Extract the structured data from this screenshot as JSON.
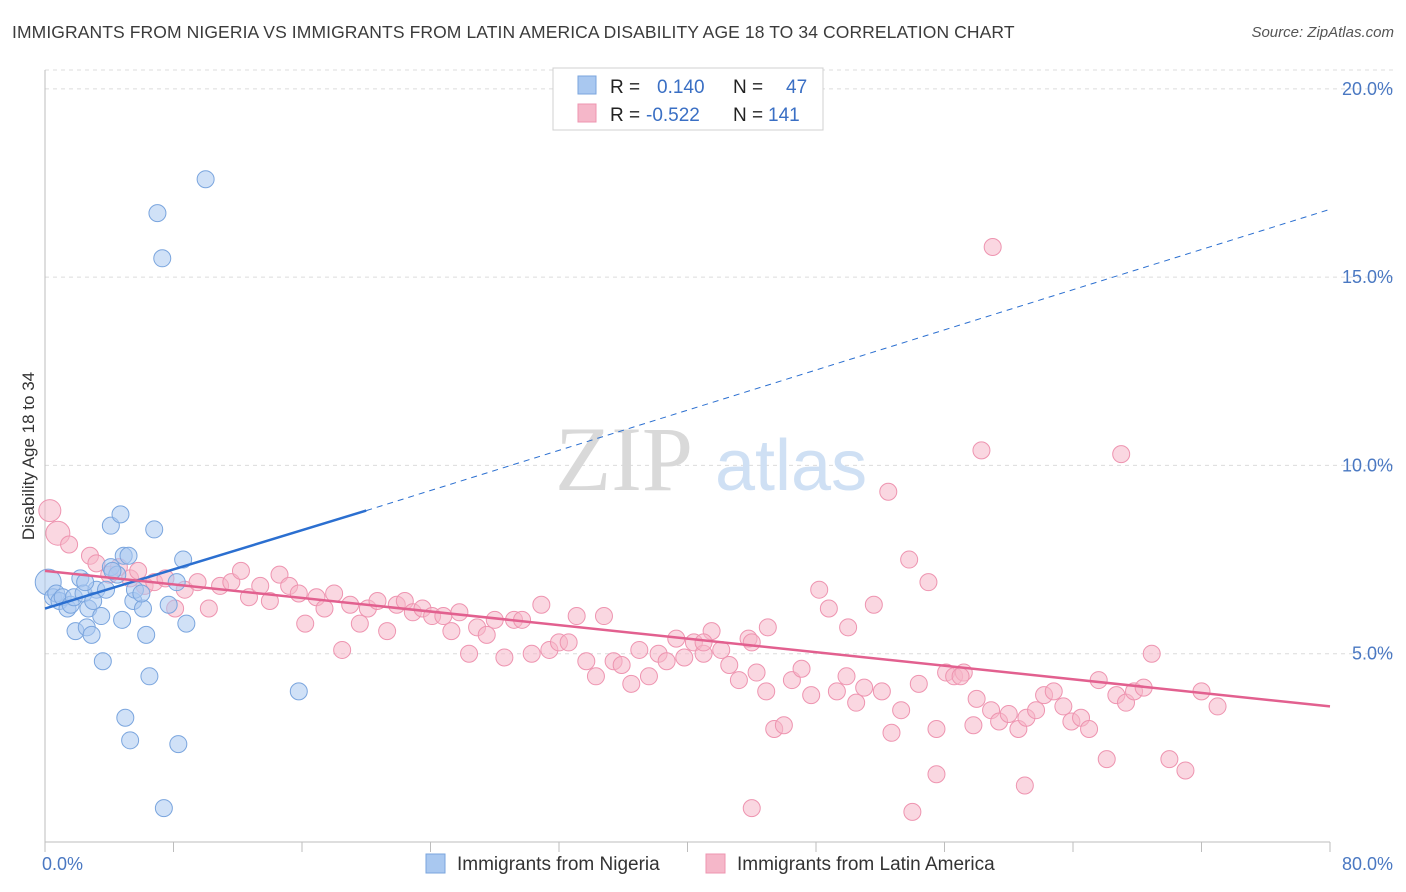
{
  "title": "IMMIGRANTS FROM NIGERIA VS IMMIGRANTS FROM LATIN AMERICA DISABILITY AGE 18 TO 34 CORRELATION CHART",
  "source": "Source: ZipAtlas.com",
  "watermark": {
    "zip": "ZIP",
    "atlas": "atlas"
  },
  "colors": {
    "nigeria_fill": "#a9c8f0",
    "nigeria_stroke": "#7aa5de",
    "nigeria_line": "#2b6fd0",
    "latin_fill": "#f5b7c9",
    "latin_stroke": "#ee94b0",
    "latin_line": "#e2608f",
    "grid": "#dcdcdc",
    "axis_text": "#4a78c2"
  },
  "legend": {
    "rows": [
      {
        "r_label": "R =",
        "r_value": "0.140",
        "n_label": "N =",
        "n_value": "47"
      },
      {
        "r_label": "R =",
        "r_value": "-0.522",
        "n_label": "N =",
        "n_value": "141"
      }
    ]
  },
  "chart_data": {
    "type": "scatter",
    "xlabel": "",
    "ylabel": "Disability Age 18 to 34",
    "xlim": [
      0,
      80
    ],
    "ylim": [
      0,
      20.5
    ],
    "x_tick_labels": [
      "0.0%",
      "80.0%"
    ],
    "y_ticks": [
      5,
      10,
      15,
      20
    ],
    "y_tick_labels": [
      "5.0%",
      "10.0%",
      "15.0%",
      "20.0%"
    ],
    "grid": "horizontal dashed",
    "legend_position": "top-center",
    "series": [
      {
        "name": "Immigrants from Nigeria",
        "R": 0.14,
        "N": 47,
        "trend": {
          "x0": 0,
          "y0": 6.2,
          "x1": 20,
          "y1": 8.8,
          "dashed_to_x": 80,
          "dashed_to_y": 16.8
        },
        "points": [
          [
            0.2,
            6.9
          ],
          [
            0.5,
            6.5
          ],
          [
            0.7,
            6.6
          ],
          [
            0.9,
            6.4
          ],
          [
            1.1,
            6.5
          ],
          [
            1.4,
            6.2
          ],
          [
            1.6,
            6.3
          ],
          [
            1.8,
            6.5
          ],
          [
            1.9,
            5.6
          ],
          [
            2.2,
            7.0
          ],
          [
            2.4,
            6.6
          ],
          [
            2.6,
            5.7
          ],
          [
            2.7,
            6.2
          ],
          [
            2.9,
            5.5
          ],
          [
            3.2,
            6.7
          ],
          [
            3.5,
            6.0
          ],
          [
            3.6,
            4.8
          ],
          [
            3.8,
            6.7
          ],
          [
            4.1,
            7.3
          ],
          [
            4.1,
            8.4
          ],
          [
            4.5,
            7.1
          ],
          [
            4.7,
            8.7
          ],
          [
            4.8,
            5.9
          ],
          [
            4.9,
            7.6
          ],
          [
            5.2,
            7.6
          ],
          [
            5.5,
            6.4
          ],
          [
            5.6,
            6.7
          ],
          [
            6.1,
            6.2
          ],
          [
            6.3,
            5.5
          ],
          [
            6.5,
            4.4
          ],
          [
            6.8,
            8.3
          ],
          [
            7.0,
            16.7
          ],
          [
            7.3,
            15.5
          ],
          [
            7.7,
            6.3
          ],
          [
            8.2,
            6.9
          ],
          [
            8.6,
            7.5
          ],
          [
            8.8,
            5.8
          ],
          [
            10.0,
            17.6
          ],
          [
            5.0,
            3.3
          ],
          [
            5.3,
            2.7
          ],
          [
            8.3,
            2.6
          ],
          [
            7.4,
            0.9
          ],
          [
            15.8,
            4.0
          ],
          [
            4.2,
            7.2
          ],
          [
            6.0,
            6.6
          ],
          [
            2.5,
            6.9
          ],
          [
            3.0,
            6.4
          ]
        ]
      },
      {
        "name": "Immigrants from Latin America",
        "R": -0.522,
        "N": 141,
        "trend": {
          "x0": 0,
          "y0": 7.2,
          "x1": 80,
          "y1": 3.6
        },
        "points": [
          [
            0.3,
            8.8
          ],
          [
            0.8,
            8.2
          ],
          [
            1.5,
            7.9
          ],
          [
            2.8,
            7.6
          ],
          [
            3.2,
            7.4
          ],
          [
            4.0,
            7.1
          ],
          [
            4.6,
            7.3
          ],
          [
            5.3,
            7.0
          ],
          [
            5.8,
            7.2
          ],
          [
            6.2,
            6.8
          ],
          [
            6.8,
            6.9
          ],
          [
            7.5,
            7.0
          ],
          [
            8.1,
            6.2
          ],
          [
            8.7,
            6.7
          ],
          [
            9.5,
            6.9
          ],
          [
            10.2,
            6.2
          ],
          [
            10.9,
            6.8
          ],
          [
            11.6,
            6.9
          ],
          [
            12.2,
            7.2
          ],
          [
            12.7,
            6.5
          ],
          [
            13.4,
            6.8
          ],
          [
            14.0,
            6.4
          ],
          [
            14.6,
            7.1
          ],
          [
            15.2,
            6.8
          ],
          [
            15.8,
            6.6
          ],
          [
            16.2,
            5.8
          ],
          [
            16.9,
            6.5
          ],
          [
            17.4,
            6.2
          ],
          [
            18.0,
            6.6
          ],
          [
            18.5,
            5.1
          ],
          [
            19.0,
            6.3
          ],
          [
            19.6,
            5.8
          ],
          [
            20.1,
            6.2
          ],
          [
            20.7,
            6.4
          ],
          [
            21.3,
            5.6
          ],
          [
            21.9,
            6.3
          ],
          [
            22.4,
            6.4
          ],
          [
            22.9,
            6.1
          ],
          [
            23.5,
            6.2
          ],
          [
            24.1,
            6.0
          ],
          [
            24.8,
            6.0
          ],
          [
            25.3,
            5.6
          ],
          [
            25.8,
            6.1
          ],
          [
            26.4,
            5.0
          ],
          [
            26.9,
            5.7
          ],
          [
            27.5,
            5.5
          ],
          [
            28.0,
            5.9
          ],
          [
            28.6,
            4.9
          ],
          [
            29.2,
            5.9
          ],
          [
            29.7,
            5.9
          ],
          [
            30.3,
            5.0
          ],
          [
            30.9,
            6.3
          ],
          [
            31.4,
            5.1
          ],
          [
            32.0,
            5.3
          ],
          [
            32.6,
            5.3
          ],
          [
            33.1,
            6.0
          ],
          [
            33.7,
            4.8
          ],
          [
            34.3,
            4.4
          ],
          [
            34.8,
            6.0
          ],
          [
            35.4,
            4.8
          ],
          [
            35.9,
            4.7
          ],
          [
            36.5,
            4.2
          ],
          [
            37.0,
            5.1
          ],
          [
            37.6,
            4.4
          ],
          [
            38.2,
            5.0
          ],
          [
            38.7,
            4.8
          ],
          [
            39.3,
            5.4
          ],
          [
            39.8,
            4.9
          ],
          [
            40.4,
            5.3
          ],
          [
            41.0,
            5.0
          ],
          [
            41.5,
            5.6
          ],
          [
            42.1,
            5.1
          ],
          [
            42.6,
            4.7
          ],
          [
            43.2,
            4.3
          ],
          [
            43.8,
            5.4
          ],
          [
            44.3,
            4.5
          ],
          [
            44.9,
            4.0
          ],
          [
            45.4,
            3.0
          ],
          [
            46.0,
            3.1
          ],
          [
            46.5,
            4.3
          ],
          [
            47.1,
            4.6
          ],
          [
            47.7,
            3.9
          ],
          [
            48.2,
            6.7
          ],
          [
            48.8,
            6.2
          ],
          [
            49.3,
            4.0
          ],
          [
            49.9,
            4.4
          ],
          [
            50.5,
            3.7
          ],
          [
            51.0,
            4.1
          ],
          [
            51.6,
            6.3
          ],
          [
            52.1,
            4.0
          ],
          [
            52.7,
            2.9
          ],
          [
            53.3,
            3.5
          ],
          [
            53.8,
            7.5
          ],
          [
            54.4,
            4.2
          ],
          [
            55.0,
            6.9
          ],
          [
            55.5,
            3.0
          ],
          [
            56.1,
            4.5
          ],
          [
            56.6,
            4.4
          ],
          [
            57.2,
            4.5
          ],
          [
            57.8,
            3.1
          ],
          [
            58.3,
            10.4
          ],
          [
            58.9,
            3.5
          ],
          [
            59.4,
            3.2
          ],
          [
            60.0,
            3.4
          ],
          [
            60.6,
            3.0
          ],
          [
            61.1,
            3.3
          ],
          [
            61.7,
            3.5
          ],
          [
            62.2,
            3.9
          ],
          [
            62.8,
            4.0
          ],
          [
            63.4,
            3.6
          ],
          [
            63.9,
            3.2
          ],
          [
            64.5,
            3.3
          ],
          [
            65.0,
            3.0
          ],
          [
            65.6,
            4.3
          ],
          [
            66.1,
            2.2
          ],
          [
            66.7,
            3.9
          ],
          [
            67.3,
            3.7
          ],
          [
            67.8,
            4.0
          ],
          [
            68.4,
            4.1
          ],
          [
            68.9,
            5.0
          ],
          [
            57.0,
            4.4
          ],
          [
            58.0,
            3.8
          ],
          [
            50.0,
            5.7
          ],
          [
            45.0,
            5.7
          ],
          [
            44.0,
            5.3
          ],
          [
            41.0,
            5.3
          ],
          [
            55.5,
            1.8
          ],
          [
            61.0,
            1.5
          ],
          [
            54.0,
            0.8
          ],
          [
            44.0,
            0.9
          ],
          [
            52.5,
            9.3
          ],
          [
            59.0,
            15.8
          ],
          [
            67.0,
            10.3
          ],
          [
            70.0,
            2.2
          ],
          [
            71.0,
            1.9
          ],
          [
            72.0,
            4.0
          ],
          [
            73.0,
            3.6
          ]
        ]
      }
    ]
  },
  "bottom_legend": [
    {
      "label": "Immigrants from Nigeria"
    },
    {
      "label": "Immigrants from Latin America"
    }
  ]
}
